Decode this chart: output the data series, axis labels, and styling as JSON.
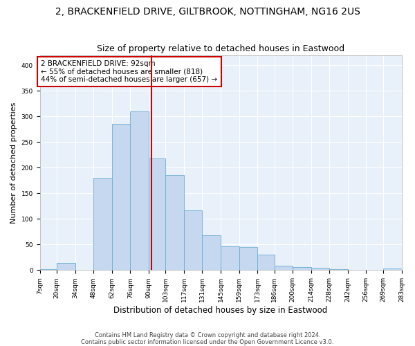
{
  "title1": "2, BRACKENFIELD DRIVE, GILTBROOK, NOTTINGHAM, NG16 2US",
  "title2": "Size of property relative to detached houses in Eastwood",
  "xlabel": "Distribution of detached houses by size in Eastwood",
  "ylabel": "Number of detached properties",
  "footnote1": "Contains HM Land Registry data © Crown copyright and database right 2024.",
  "footnote2": "Contains public sector information licensed under the Open Government Licence v3.0.",
  "bar_edges": [
    7,
    20,
    34,
    48,
    62,
    76,
    90,
    103,
    117,
    131,
    145,
    159,
    173,
    186,
    200,
    214,
    228,
    242,
    256,
    269,
    283
  ],
  "bar_heights": [
    2,
    14,
    0,
    180,
    285,
    310,
    218,
    185,
    117,
    68,
    46,
    45,
    30,
    8,
    6,
    5,
    2,
    1,
    0,
    3
  ],
  "bar_color": "#c5d8f0",
  "bar_edge_color": "#6baed6",
  "property_line_x": 92,
  "annotation_line1": "2 BRACKENFIELD DRIVE: 92sqm",
  "annotation_line2": "← 55% of detached houses are smaller (818)",
  "annotation_line3": "44% of semi-detached houses are larger (657) →",
  "ylim": [
    0,
    420
  ],
  "yticks": [
    0,
    50,
    100,
    150,
    200,
    250,
    300,
    350,
    400
  ],
  "bg_color": "#e8f0fa",
  "grid_color": "#ffffff",
  "box_edge_color": "#cc0000",
  "line_color": "#cc0000",
  "title1_fontsize": 10,
  "title2_fontsize": 9,
  "xlabel_fontsize": 8.5,
  "ylabel_fontsize": 8,
  "tick_fontsize": 6.5,
  "annotation_fontsize": 7.5,
  "footnote_fontsize": 6
}
